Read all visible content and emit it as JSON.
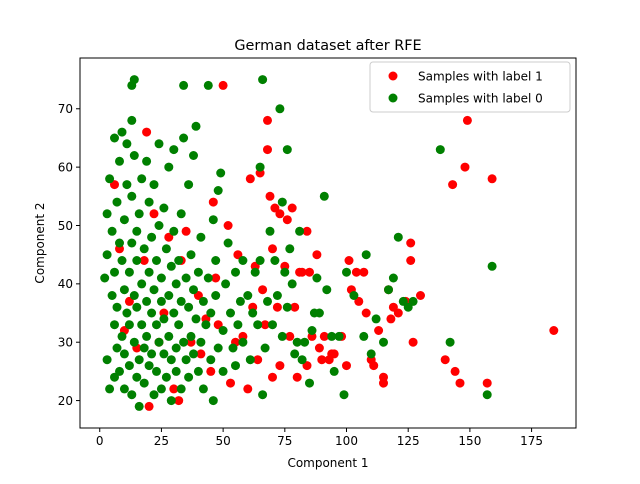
{
  "chart_data": {
    "type": "scatter",
    "title": "German dataset after RFE",
    "xlabel": "Component 1",
    "ylabel": "Component 2",
    "xlim": [
      -8,
      193
    ],
    "ylim": [
      15.3,
      78.7
    ],
    "xticks": [
      0,
      25,
      50,
      75,
      100,
      125,
      150,
      175
    ],
    "yticks": [
      20,
      30,
      40,
      50,
      60,
      70
    ],
    "grid": false,
    "legend_position": "upper-right",
    "series": [
      {
        "name": "Samples with label 1",
        "color": "#ff0000",
        "points": [
          [
            6,
            57
          ],
          [
            8,
            46
          ],
          [
            10,
            32
          ],
          [
            12,
            37
          ],
          [
            15,
            29
          ],
          [
            18,
            44
          ],
          [
            19,
            66
          ],
          [
            20,
            19
          ],
          [
            22,
            52
          ],
          [
            24,
            30
          ],
          [
            26,
            35
          ],
          [
            28,
            48
          ],
          [
            30,
            22
          ],
          [
            32,
            20
          ],
          [
            33,
            44
          ],
          [
            35,
            49
          ],
          [
            37,
            30
          ],
          [
            40,
            38
          ],
          [
            41,
            28
          ],
          [
            43,
            34
          ],
          [
            45,
            25
          ],
          [
            46,
            54
          ],
          [
            47,
            41
          ],
          [
            48,
            33
          ],
          [
            50,
            74
          ],
          [
            52,
            50
          ],
          [
            53,
            23
          ],
          [
            55,
            30
          ],
          [
            56,
            45
          ],
          [
            58,
            31
          ],
          [
            60,
            22
          ],
          [
            61,
            58
          ],
          [
            62,
            36
          ],
          [
            63,
            43
          ],
          [
            64,
            27
          ],
          [
            65,
            59
          ],
          [
            66,
            39
          ],
          [
            67,
            33
          ],
          [
            68,
            68
          ],
          [
            68,
            63
          ],
          [
            69,
            55
          ],
          [
            70,
            46
          ],
          [
            70,
            24
          ],
          [
            71,
            53
          ],
          [
            72,
            36
          ],
          [
            73,
            52
          ],
          [
            73,
            26
          ],
          [
            75,
            43
          ],
          [
            76,
            51
          ],
          [
            77,
            31
          ],
          [
            78,
            53
          ],
          [
            79,
            36
          ],
          [
            80,
            24
          ],
          [
            81,
            42
          ],
          [
            82,
            42
          ],
          [
            84,
            49
          ],
          [
            84,
            26
          ],
          [
            85,
            42
          ],
          [
            86,
            31
          ],
          [
            88,
            45
          ],
          [
            89,
            29
          ],
          [
            90,
            27
          ],
          [
            91,
            31
          ],
          [
            93,
            27
          ],
          [
            94,
            28
          ],
          [
            95,
            28
          ],
          [
            98,
            31
          ],
          [
            100,
            26
          ],
          [
            101,
            44
          ],
          [
            102,
            39
          ],
          [
            104,
            42
          ],
          [
            105,
            37
          ],
          [
            107,
            42
          ],
          [
            108,
            35
          ],
          [
            110,
            27
          ],
          [
            111,
            26
          ],
          [
            113,
            32
          ],
          [
            115,
            24
          ],
          [
            115,
            23
          ],
          [
            117,
            39
          ],
          [
            118,
            34
          ],
          [
            119,
            36
          ],
          [
            121,
            35
          ],
          [
            124,
            37
          ],
          [
            126,
            44
          ],
          [
            126,
            47
          ],
          [
            127,
            30
          ],
          [
            130,
            38
          ],
          [
            140,
            27
          ],
          [
            143,
            57
          ],
          [
            144,
            25
          ],
          [
            146,
            23
          ],
          [
            148,
            60
          ],
          [
            149,
            68
          ],
          [
            157,
            23
          ],
          [
            159,
            58
          ],
          [
            184,
            32
          ]
        ]
      },
      {
        "name": "Samples with label 0",
        "color": "#008000",
        "points": [
          [
            2,
            41
          ],
          [
            3,
            45
          ],
          [
            3,
            52
          ],
          [
            3,
            27
          ],
          [
            4,
            22
          ],
          [
            4,
            58
          ],
          [
            5,
            38
          ],
          [
            5,
            49
          ],
          [
            6,
            65
          ],
          [
            6,
            24
          ],
          [
            6,
            33
          ],
          [
            6,
            42
          ],
          [
            7,
            54
          ],
          [
            7,
            36
          ],
          [
            7,
            29
          ],
          [
            8,
            47
          ],
          [
            8,
            61
          ],
          [
            8,
            25
          ],
          [
            9,
            66
          ],
          [
            9,
            31
          ],
          [
            9,
            44
          ],
          [
            10,
            22
          ],
          [
            10,
            39
          ],
          [
            10,
            51
          ],
          [
            10,
            28
          ],
          [
            11,
            35
          ],
          [
            11,
            64
          ],
          [
            11,
            57
          ],
          [
            12,
            26
          ],
          [
            12,
            42
          ],
          [
            12,
            33
          ],
          [
            13,
            68
          ],
          [
            13,
            47
          ],
          [
            13,
            21
          ],
          [
            13,
            55
          ],
          [
            13,
            74
          ],
          [
            14,
            75
          ],
          [
            14,
            30
          ],
          [
            14,
            38
          ],
          [
            14,
            62
          ],
          [
            15,
            49
          ],
          [
            15,
            24
          ],
          [
            15,
            36
          ],
          [
            15,
            44
          ],
          [
            16,
            27
          ],
          [
            16,
            52
          ],
          [
            16,
            19
          ],
          [
            17,
            33
          ],
          [
            17,
            40
          ],
          [
            17,
            58
          ],
          [
            18,
            29
          ],
          [
            18,
            46
          ],
          [
            18,
            23
          ],
          [
            19,
            37
          ],
          [
            19,
            61
          ],
          [
            19,
            31
          ],
          [
            20,
            54
          ],
          [
            20,
            26
          ],
          [
            20,
            42
          ],
          [
            21,
            35
          ],
          [
            21,
            48
          ],
          [
            21,
            28
          ],
          [
            22,
            21
          ],
          [
            22,
            39
          ],
          [
            22,
            57
          ],
          [
            23,
            33
          ],
          [
            23,
            44
          ],
          [
            23,
            25
          ],
          [
            24,
            64
          ],
          [
            24,
            30
          ],
          [
            24,
            50
          ],
          [
            25,
            37
          ],
          [
            25,
            22
          ],
          [
            25,
            41
          ],
          [
            26,
            28
          ],
          [
            26,
            53
          ],
          [
            26,
            34
          ],
          [
            27,
            46
          ],
          [
            27,
            24
          ],
          [
            28,
            31
          ],
          [
            28,
            38
          ],
          [
            28,
            60
          ],
          [
            29,
            27
          ],
          [
            29,
            43
          ],
          [
            29,
            20
          ],
          [
            30,
            35
          ],
          [
            30,
            49
          ],
          [
            30,
            63
          ],
          [
            31,
            29
          ],
          [
            31,
            40
          ],
          [
            31,
            25
          ],
          [
            32,
            33
          ],
          [
            32,
            44
          ],
          [
            33,
            22
          ],
          [
            33,
            37
          ],
          [
            33,
            52
          ],
          [
            34,
            74
          ],
          [
            34,
            65
          ],
          [
            34,
            30
          ],
          [
            35,
            41
          ],
          [
            35,
            27
          ],
          [
            36,
            36
          ],
          [
            36,
            57
          ],
          [
            36,
            24
          ],
          [
            37,
            31
          ],
          [
            37,
            45
          ],
          [
            38,
            28
          ],
          [
            38,
            39
          ],
          [
            38,
            62
          ],
          [
            39,
            67
          ],
          [
            39,
            34
          ],
          [
            40,
            42
          ],
          [
            40,
            25
          ],
          [
            41,
            30
          ],
          [
            41,
            48
          ],
          [
            42,
            37
          ],
          [
            42,
            22
          ],
          [
            43,
            33
          ],
          [
            44,
            74
          ],
          [
            44,
            41
          ],
          [
            45,
            27
          ],
          [
            45,
            35
          ],
          [
            46,
            20
          ],
          [
            46,
            51
          ],
          [
            47,
            38
          ],
          [
            47,
            44
          ],
          [
            48,
            29
          ],
          [
            48,
            56
          ],
          [
            49,
            59
          ],
          [
            50,
            32
          ],
          [
            50,
            25
          ],
          [
            51,
            40
          ],
          [
            52,
            47
          ],
          [
            53,
            35
          ],
          [
            54,
            29
          ],
          [
            55,
            42
          ],
          [
            55,
            26
          ],
          [
            56,
            33
          ],
          [
            57,
            37
          ],
          [
            58,
            44
          ],
          [
            58,
            30
          ],
          [
            60,
            38
          ],
          [
            61,
            27
          ],
          [
            62,
            35
          ],
          [
            63,
            42
          ],
          [
            64,
            33
          ],
          [
            65,
            44
          ],
          [
            65,
            60
          ],
          [
            66,
            75
          ],
          [
            66,
            21
          ],
          [
            67,
            29
          ],
          [
            68,
            37
          ],
          [
            69,
            49
          ],
          [
            70,
            33
          ],
          [
            71,
            44
          ],
          [
            72,
            38
          ],
          [
            73,
            70
          ],
          [
            74,
            54
          ],
          [
            74,
            31
          ],
          [
            75,
            42
          ],
          [
            76,
            63
          ],
          [
            76,
            36
          ],
          [
            77,
            46
          ],
          [
            78,
            40
          ],
          [
            79,
            28
          ],
          [
            80,
            30
          ],
          [
            81,
            49
          ],
          [
            82,
            27
          ],
          [
            83,
            30
          ],
          [
            85,
            23
          ],
          [
            86,
            32
          ],
          [
            87,
            35
          ],
          [
            88,
            41
          ],
          [
            89,
            35
          ],
          [
            91,
            55
          ],
          [
            92,
            39
          ],
          [
            94,
            31
          ],
          [
            95,
            25
          ],
          [
            97,
            31
          ],
          [
            99,
            21
          ],
          [
            100,
            42
          ],
          [
            103,
            38
          ],
          [
            107,
            31
          ],
          [
            108,
            45
          ],
          [
            110,
            28
          ],
          [
            112,
            34
          ],
          [
            115,
            30
          ],
          [
            117,
            39
          ],
          [
            119,
            41
          ],
          [
            121,
            48
          ],
          [
            123,
            37
          ],
          [
            125,
            36
          ],
          [
            127,
            37
          ],
          [
            138,
            63
          ],
          [
            142,
            30
          ],
          [
            157,
            21
          ],
          [
            159,
            43
          ]
        ]
      }
    ]
  }
}
